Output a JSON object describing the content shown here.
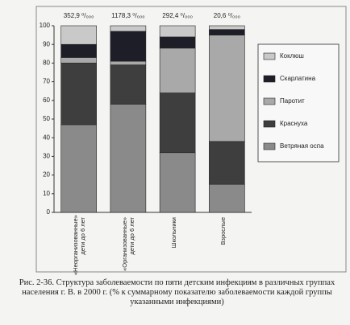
{
  "chart_data": {
    "type": "stacked_bar",
    "categories": [
      "«Неорганизованные» дети до 6 лет",
      "«Организованные» дети до 6 лет",
      "Школьники",
      "Взрослые"
    ],
    "annotations": [
      "352,9 ⁰/₀₀₀",
      "1178,3 ⁰/₀₀₀",
      "292,4 ⁰/₀₀₀",
      "20,6 ⁰/₀₀₀"
    ],
    "series": [
      {
        "name": "Ветряная оспа",
        "color": "#8a8a8a",
        "values": [
          47,
          58,
          32,
          15
        ]
      },
      {
        "name": "Краснуха",
        "color": "#3e3e3e",
        "values": [
          33,
          21,
          32,
          23
        ]
      },
      {
        "name": "Паротит",
        "color": "#a9a9a9",
        "values": [
          3,
          2,
          24,
          57
        ]
      },
      {
        "name": "Скарлатина",
        "color": "#1e1e28",
        "values": [
          7,
          16,
          6,
          3
        ]
      },
      {
        "name": "Коклюш",
        "color": "#c9c9c9",
        "values": [
          10,
          3,
          6,
          2
        ]
      }
    ],
    "ylim": [
      0,
      100
    ],
    "yticks": [
      0,
      10,
      20,
      30,
      40,
      50,
      60,
      70,
      80,
      90,
      100
    ],
    "caption": "Рис. 2-36. Структура заболеваемости по пяти детским инфекциям в различных группах населения г. В. в 2000 г. (% к суммарному показателю заболеваемости каждой группы указанными инфекциями)"
  }
}
